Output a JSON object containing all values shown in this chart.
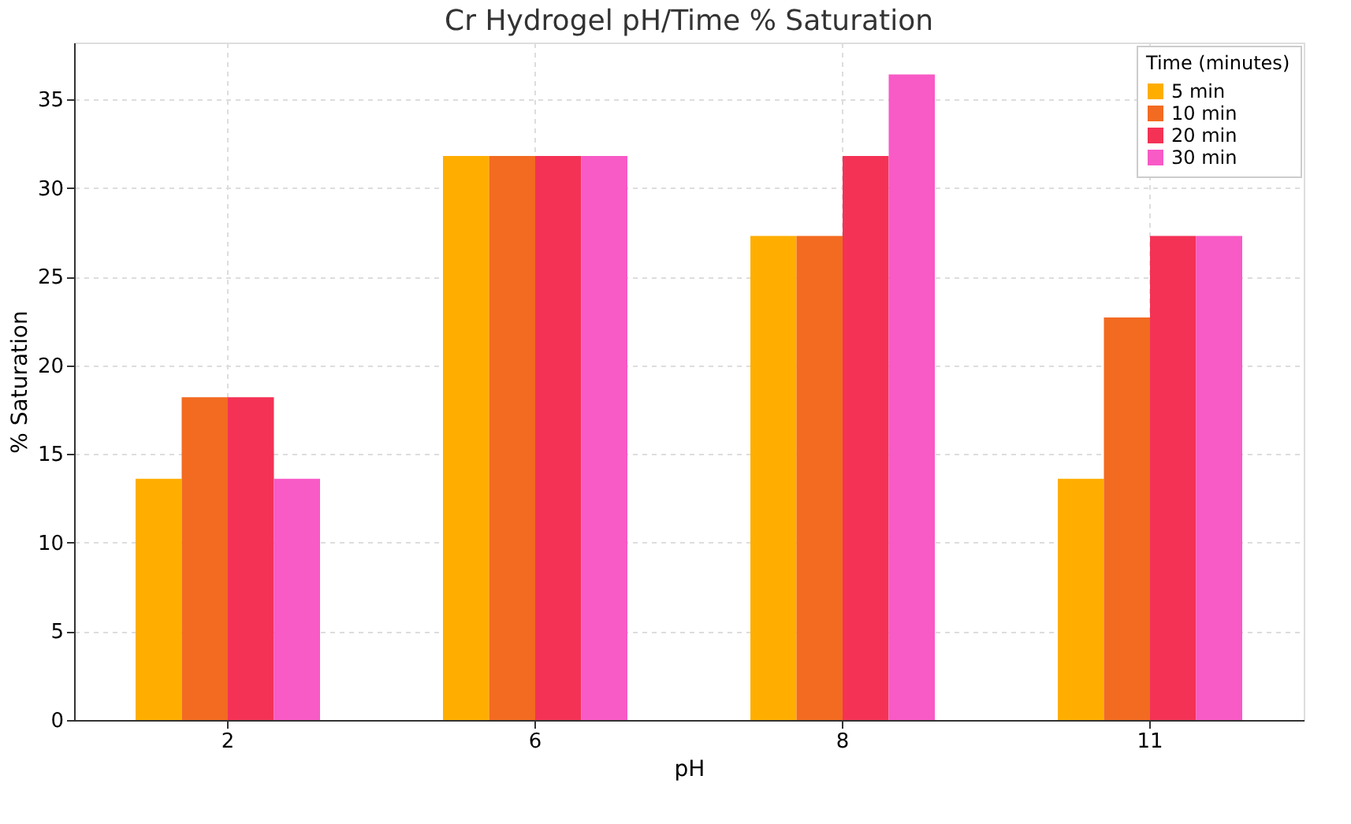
{
  "chart_data": {
    "type": "bar",
    "title": "Cr Hydrogel pH/Time % Saturation",
    "xlabel": "pH",
    "ylabel": "% Saturation",
    "legend_title": "Time (minutes)",
    "categories": [
      "2",
      "6",
      "8",
      "11"
    ],
    "series": [
      {
        "name": "5 min",
        "color": "#ffae00",
        "values": [
          13.6,
          31.8,
          27.3,
          13.6
        ]
      },
      {
        "name": "10 min",
        "color": "#f26b21",
        "values": [
          18.2,
          31.8,
          27.3,
          22.7
        ]
      },
      {
        "name": "20 min",
        "color": "#f43256",
        "values": [
          18.2,
          31.8,
          31.8,
          27.3
        ]
      },
      {
        "name": "30 min",
        "color": "#f85ac6",
        "values": [
          13.6,
          31.8,
          36.4,
          27.3
        ]
      }
    ],
    "ylim": [
      0,
      38.2
    ],
    "yticks": [
      0,
      5,
      10,
      15,
      20,
      25,
      30,
      35
    ],
    "grid": true,
    "legend": "top right"
  }
}
